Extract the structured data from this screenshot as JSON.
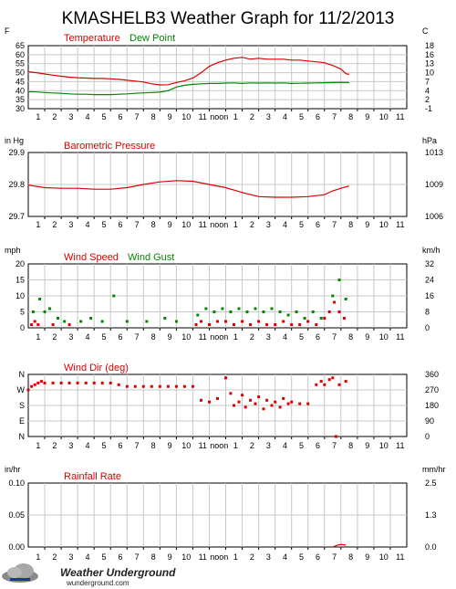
{
  "page": {
    "title": "KMASHELB3 Weather Graph for 11/2/2013",
    "logo": {
      "brand": "Weather Underground",
      "url_text": "wunderground.com"
    }
  },
  "colors": {
    "red": "#dd0000",
    "green": "#008800",
    "grid": "#c8c8c8",
    "frame": "#000000"
  },
  "chart_data": [
    {
      "id": "temperature",
      "type": "line",
      "left_unit": "F",
      "right_unit": "C",
      "left_ticks": [
        "65",
        "60",
        "55",
        "50",
        "45",
        "40",
        "35",
        "30"
      ],
      "right_ticks": [
        "18",
        "16",
        "13",
        "10",
        "7",
        "4",
        "2",
        "-1"
      ],
      "ylim": [
        30,
        65
      ],
      "x_labels": [
        "1",
        "2",
        "3",
        "4",
        "5",
        "6",
        "7",
        "8",
        "9",
        "10",
        "11",
        "noon",
        "1",
        "2",
        "3",
        "4",
        "5",
        "6",
        "7",
        "8",
        "9",
        "10",
        "11"
      ],
      "series": [
        {
          "name": "Temperature",
          "color": "#dd0000",
          "points": [
            [
              0,
              50.5
            ],
            [
              0.5,
              50
            ],
            [
              1,
              49.3
            ],
            [
              1.5,
              48.6
            ],
            [
              2,
              48
            ],
            [
              2.5,
              47.5
            ],
            [
              3,
              47.2
            ],
            [
              3.5,
              47
            ],
            [
              4,
              46.8
            ],
            [
              4.5,
              46.8
            ],
            [
              5,
              46.6
            ],
            [
              5.5,
              46.3
            ],
            [
              6,
              45.8
            ],
            [
              6.5,
              45.3
            ],
            [
              7,
              44.8
            ],
            [
              7.5,
              43.8
            ],
            [
              8,
              43.2
            ],
            [
              8.5,
              43.3
            ],
            [
              9,
              44.5
            ],
            [
              9.5,
              45.5
            ],
            [
              10,
              47
            ],
            [
              10.5,
              50
            ],
            [
              11,
              53.5
            ],
            [
              11.5,
              55.5
            ],
            [
              12,
              57
            ],
            [
              12.5,
              58
            ],
            [
              13,
              58.5
            ],
            [
              13.5,
              57.5
            ],
            [
              14,
              58
            ],
            [
              14.5,
              57.5
            ],
            [
              15,
              57.5
            ],
            [
              15.5,
              57.5
            ],
            [
              16,
              57
            ],
            [
              16.5,
              57
            ],
            [
              17,
              56.5
            ],
            [
              17.5,
              56
            ],
            [
              18,
              55.5
            ],
            [
              18.5,
              54
            ],
            [
              19,
              52
            ],
            [
              19.3,
              49.5
            ],
            [
              19.5,
              49
            ]
          ]
        },
        {
          "name": "Dew Point",
          "color": "#008800",
          "points": [
            [
              0,
              39.5
            ],
            [
              0.5,
              39.3
            ],
            [
              1,
              39
            ],
            [
              1.5,
              38.7
            ],
            [
              2,
              38.5
            ],
            [
              2.5,
              38.2
            ],
            [
              3,
              38
            ],
            [
              3.5,
              38
            ],
            [
              4,
              37.8
            ],
            [
              4.5,
              37.8
            ],
            [
              5,
              37.8
            ],
            [
              5.5,
              38
            ],
            [
              6,
              38.2
            ],
            [
              6.5,
              38.5
            ],
            [
              7,
              38.8
            ],
            [
              7.5,
              39
            ],
            [
              8,
              39.2
            ],
            [
              8.5,
              40
            ],
            [
              9,
              42
            ],
            [
              9.5,
              43
            ],
            [
              10,
              43.5
            ],
            [
              10.5,
              43.8
            ],
            [
              11,
              44
            ],
            [
              11.5,
              44
            ],
            [
              12,
              44.2
            ],
            [
              12.5,
              44.3
            ],
            [
              13,
              44
            ],
            [
              13.5,
              44.3
            ],
            [
              14,
              44.2
            ],
            [
              14.5,
              44.3
            ],
            [
              15,
              44.2
            ],
            [
              15.5,
              44.3
            ],
            [
              16,
              44
            ],
            [
              16.5,
              44.1
            ],
            [
              17,
              44.2
            ],
            [
              17.5,
              44.3
            ],
            [
              18,
              44.4
            ],
            [
              18.5,
              44.5
            ],
            [
              19,
              44.6
            ],
            [
              19.5,
              44.5
            ]
          ]
        }
      ]
    },
    {
      "id": "pressure",
      "type": "line",
      "left_unit": "in Hg",
      "right_unit": "hPa",
      "left_ticks": [
        "29.9",
        "29.8",
        "29.7"
      ],
      "right_ticks": [
        "1013",
        "1009",
        "1006"
      ],
      "ylim": [
        29.7,
        29.9
      ],
      "x_labels": [
        "1",
        "2",
        "3",
        "4",
        "5",
        "6",
        "7",
        "8",
        "9",
        "10",
        "11",
        "noon",
        "1",
        "2",
        "3",
        "4",
        "5",
        "6",
        "7",
        "8",
        "9",
        "10",
        "11"
      ],
      "series": [
        {
          "name": "Barometric Pressure",
          "color": "#dd0000",
          "points": [
            [
              0,
              29.798
            ],
            [
              1,
              29.79
            ],
            [
              2,
              29.788
            ],
            [
              3,
              29.788
            ],
            [
              4,
              29.785
            ],
            [
              5,
              29.785
            ],
            [
              6,
              29.79
            ],
            [
              7,
              29.8
            ],
            [
              8,
              29.808
            ],
            [
              9,
              29.812
            ],
            [
              10,
              29.81
            ],
            [
              11,
              29.8
            ],
            [
              12,
              29.79
            ],
            [
              13,
              29.775
            ],
            [
              14,
              29.762
            ],
            [
              15,
              29.76
            ],
            [
              16,
              29.76
            ],
            [
              17,
              29.762
            ],
            [
              18,
              29.768
            ],
            [
              18.5,
              29.78
            ],
            [
              19,
              29.788
            ],
            [
              19.5,
              29.795
            ]
          ]
        }
      ]
    },
    {
      "id": "wind",
      "type": "scatter",
      "left_unit": "mph",
      "right_unit": "km/h",
      "left_ticks": [
        "20",
        "15",
        "10",
        "5",
        "0"
      ],
      "right_ticks": [
        "32",
        "24",
        "16",
        "8",
        "0"
      ],
      "ylim": [
        0,
        20
      ],
      "x_labels": [
        "1",
        "2",
        "3",
        "4",
        "5",
        "6",
        "7",
        "8",
        "9",
        "10",
        "11",
        "noon",
        "1",
        "2",
        "3",
        "4",
        "5",
        "6",
        "7",
        "8",
        "9",
        "10",
        "11"
      ],
      "series": [
        {
          "name": "Wind Speed",
          "color": "#dd0000",
          "points": [
            [
              0.2,
              1
            ],
            [
              0.4,
              2
            ],
            [
              0.6,
              1
            ],
            [
              1.5,
              1
            ],
            [
              2.5,
              1
            ],
            [
              10.2,
              1
            ],
            [
              10.5,
              2
            ],
            [
              11,
              1
            ],
            [
              11.5,
              2
            ],
            [
              12,
              2
            ],
            [
              12.5,
              1
            ],
            [
              13,
              2
            ],
            [
              13.5,
              1
            ],
            [
              14,
              2
            ],
            [
              14.5,
              1
            ],
            [
              15,
              1
            ],
            [
              15.5,
              2
            ],
            [
              16,
              1
            ],
            [
              16.5,
              1
            ],
            [
              17,
              2
            ],
            [
              17.5,
              1
            ],
            [
              18,
              3
            ],
            [
              18.3,
              5
            ],
            [
              18.6,
              8
            ],
            [
              18.9,
              5
            ],
            [
              19.2,
              3
            ]
          ]
        },
        {
          "name": "Wind Gust",
          "color": "#008800",
          "points": [
            [
              0.3,
              5
            ],
            [
              0.7,
              9
            ],
            [
              1,
              5
            ],
            [
              1.3,
              6
            ],
            [
              1.8,
              3
            ],
            [
              2.2,
              2
            ],
            [
              3.2,
              2
            ],
            [
              3.8,
              3
            ],
            [
              4.5,
              2
            ],
            [
              5.2,
              10
            ],
            [
              6,
              2
            ],
            [
              7.2,
              2
            ],
            [
              8.3,
              3
            ],
            [
              9,
              2
            ],
            [
              10.3,
              4
            ],
            [
              10.8,
              6
            ],
            [
              11.3,
              5
            ],
            [
              11.8,
              6
            ],
            [
              12.3,
              5
            ],
            [
              12.8,
              6
            ],
            [
              13.3,
              5
            ],
            [
              13.8,
              6
            ],
            [
              14.3,
              5
            ],
            [
              14.8,
              6
            ],
            [
              15.3,
              5
            ],
            [
              15.8,
              4
            ],
            [
              16.3,
              5
            ],
            [
              16.8,
              3
            ],
            [
              17.3,
              5
            ],
            [
              17.8,
              3
            ],
            [
              18.5,
              10
            ],
            [
              18.9,
              15
            ],
            [
              19.3,
              9
            ]
          ]
        }
      ]
    },
    {
      "id": "wind_dir",
      "type": "scatter",
      "left_unit": "",
      "right_unit": "",
      "left_ticks": [
        "N",
        "W",
        "S",
        "E",
        "N"
      ],
      "right_ticks": [
        "360",
        "270",
        "180",
        "90",
        "0"
      ],
      "ylim": [
        0,
        360
      ],
      "x_labels": [
        "1",
        "2",
        "3",
        "4",
        "5",
        "6",
        "7",
        "8",
        "9",
        "10",
        "11",
        "noon",
        "1",
        "2",
        "3",
        "4",
        "5",
        "6",
        "7",
        "8",
        "9",
        "10",
        "11"
      ],
      "series": [
        {
          "name": "Wind Dir (deg)",
          "color": "#dd0000",
          "points": [
            [
              0,
              270
            ],
            [
              0.2,
              290
            ],
            [
              0.4,
              300
            ],
            [
              0.6,
              310
            ],
            [
              0.8,
              320
            ],
            [
              1,
              310
            ],
            [
              1.5,
              310
            ],
            [
              2,
              310
            ],
            [
              2.5,
              310
            ],
            [
              3,
              310
            ],
            [
              3.5,
              310
            ],
            [
              4,
              310
            ],
            [
              4.5,
              310
            ],
            [
              5,
              310
            ],
            [
              5.5,
              300
            ],
            [
              6,
              290
            ],
            [
              6.5,
              290
            ],
            [
              7,
              290
            ],
            [
              7.5,
              290
            ],
            [
              8,
              290
            ],
            [
              8.5,
              290
            ],
            [
              9,
              290
            ],
            [
              9.5,
              290
            ],
            [
              10,
              290
            ],
            [
              10.5,
              210
            ],
            [
              11,
              200
            ],
            [
              11.5,
              220
            ],
            [
              12,
              340
            ],
            [
              12.3,
              250
            ],
            [
              12.5,
              180
            ],
            [
              12.8,
              200
            ],
            [
              13,
              240
            ],
            [
              13.2,
              170
            ],
            [
              13.5,
              210
            ],
            [
              13.8,
              190
            ],
            [
              14,
              230
            ],
            [
              14.3,
              160
            ],
            [
              14.5,
              210
            ],
            [
              14.8,
              180
            ],
            [
              15,
              200
            ],
            [
              15.3,
              170
            ],
            [
              15.5,
              220
            ],
            [
              15.8,
              190
            ],
            [
              16,
              200
            ],
            [
              16.5,
              190
            ],
            [
              17,
              190
            ],
            [
              17.5,
              300
            ],
            [
              17.8,
              320
            ],
            [
              18,
              300
            ],
            [
              18.3,
              330
            ],
            [
              18.5,
              340
            ],
            [
              18.7,
              0
            ],
            [
              18.9,
              300
            ],
            [
              19.3,
              320
            ]
          ]
        }
      ]
    },
    {
      "id": "rainfall",
      "type": "line",
      "left_unit": "in/hr",
      "right_unit": "mm/hr",
      "left_ticks": [
        "0.10",
        "0.05",
        "0.00"
      ],
      "right_ticks": [
        "2.5",
        "1.3",
        "0.0"
      ],
      "ylim": [
        0,
        0.1
      ],
      "x_labels": [
        "1",
        "2",
        "3",
        "4",
        "5",
        "6",
        "7",
        "8",
        "9",
        "10",
        "11",
        "noon",
        "1",
        "2",
        "3",
        "4",
        "5",
        "6",
        "7",
        "8",
        "9",
        "10",
        "11"
      ],
      "series": [
        {
          "name": "Rainfall Rate",
          "color": "#dd0000",
          "points": [
            [
              18.5,
              0
            ],
            [
              18.8,
              0.003
            ],
            [
              19,
              0.004
            ],
            [
              19.3,
              0.003
            ]
          ]
        }
      ]
    }
  ]
}
